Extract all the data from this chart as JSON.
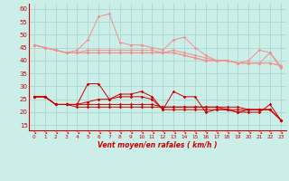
{
  "xlabel": "Vent moyen/en rafales ( km/h )",
  "bg_color": "#cceee8",
  "grid_color": "#aad8d2",
  "ylim": [
    13,
    62
  ],
  "yticks": [
    15,
    20,
    25,
    30,
    35,
    40,
    45,
    50,
    55,
    60
  ],
  "xticks": [
    0,
    1,
    2,
    3,
    4,
    5,
    6,
    7,
    8,
    9,
    10,
    11,
    12,
    13,
    14,
    15,
    16,
    17,
    18,
    19,
    20,
    21,
    22,
    23
  ],
  "light_lines": [
    [
      46,
      45,
      44,
      43,
      44,
      48,
      57,
      58,
      47,
      46,
      46,
      45,
      44,
      48,
      49,
      45,
      42,
      40,
      40,
      39,
      40,
      44,
      43,
      37
    ],
    [
      46,
      45,
      44,
      43,
      43,
      44,
      44,
      44,
      44,
      44,
      44,
      44,
      43,
      44,
      43,
      42,
      41,
      40,
      40,
      39,
      39,
      39,
      43,
      38
    ],
    [
      46,
      45,
      44,
      43,
      43,
      43,
      43,
      43,
      43,
      43,
      43,
      43,
      43,
      43,
      42,
      41,
      40,
      40,
      40,
      39,
      39,
      39,
      39,
      38
    ],
    [
      46,
      45,
      44,
      43,
      43,
      43,
      43,
      43,
      43,
      43,
      43,
      43,
      43,
      43,
      42,
      41,
      40,
      40,
      40,
      39,
      39,
      39,
      39,
      38
    ]
  ],
  "dark_lines": [
    [
      26,
      26,
      23,
      23,
      23,
      31,
      31,
      25,
      27,
      27,
      28,
      26,
      21,
      28,
      26,
      26,
      20,
      21,
      21,
      20,
      20,
      20,
      23,
      17
    ],
    [
      26,
      26,
      23,
      23,
      23,
      24,
      25,
      25,
      26,
      26,
      26,
      25,
      21,
      21,
      21,
      21,
      21,
      21,
      21,
      20,
      21,
      21,
      21,
      17
    ],
    [
      26,
      26,
      23,
      23,
      23,
      23,
      23,
      23,
      23,
      23,
      23,
      23,
      22,
      22,
      22,
      22,
      22,
      22,
      22,
      22,
      21,
      21,
      21,
      17
    ],
    [
      26,
      26,
      23,
      23,
      22,
      22,
      22,
      22,
      22,
      22,
      22,
      22,
      22,
      22,
      22,
      22,
      22,
      22,
      21,
      21,
      21,
      21,
      21,
      17
    ]
  ],
  "light_color": "#f09090",
  "dark_color": "#cc0000",
  "marker": "D",
  "markersize": 1.8,
  "linewidth": 0.7
}
